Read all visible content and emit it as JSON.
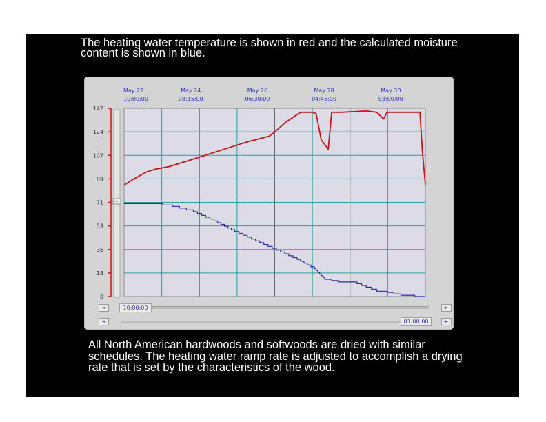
{
  "captions": {
    "top": "The heating water temperature is shown in red and the calculated moisture content is shown in blue.",
    "bottom": "All North American hardwoods and softwoods are dried with similar schedules. The heating water ramp rate is adjusted to accomplish a drying rate that is set by the characteristics of the wood."
  },
  "scrollbar": {
    "start_time": "10:00:00",
    "end_time": "03:00:00",
    "left_arrow": "◄",
    "right_arrow": "►"
  },
  "colors": {
    "temperature": "#c81414",
    "moisture": "#2828a8",
    "plot_background": "#dcdbe6",
    "grid": "#2aa0a0"
  },
  "chart_data": {
    "type": "line",
    "grid": true,
    "ylim": [
      0,
      142
    ],
    "yticks": [
      "142",
      "124",
      "107",
      "89",
      "71",
      "53",
      "36",
      "18",
      "0"
    ],
    "xlim": [
      0,
      8.708
    ],
    "x_unit": "days since May 22 10:00:00",
    "time_labels": [
      {
        "date": "May 22",
        "time": "10:00:00",
        "x": 0
      },
      {
        "date": "May 24",
        "time": "08:15:00",
        "x": 1.927
      },
      {
        "date": "May 26",
        "time": "06:30:00",
        "x": 3.854
      },
      {
        "date": "May 28",
        "time": "04:45:00",
        "x": 5.781
      },
      {
        "date": "May 30",
        "time": "03:00:00",
        "x": 7.708
      }
    ],
    "series": [
      {
        "key": "temperature",
        "x": [
          0,
          0.3,
          0.65,
          0.9,
          1.3,
          1.8,
          2.4,
          3.0,
          3.6,
          4.2,
          4.3,
          4.7,
          5.1,
          5.35,
          5.45,
          5.55,
          5.7,
          5.85,
          5.9,
          6.0,
          6.3,
          7.0,
          7.3,
          7.5,
          7.6,
          7.75,
          8.0,
          8.15,
          8.25,
          8.55,
          8.62,
          8.708
        ],
        "values": [
          84,
          89,
          94,
          96,
          98,
          102,
          107,
          112,
          117,
          121,
          123,
          132,
          139,
          139,
          139,
          138,
          118,
          113,
          111,
          139,
          139,
          140,
          139,
          134,
          139,
          139,
          139,
          139,
          139,
          139,
          110,
          84
        ]
      },
      {
        "key": "moisture",
        "x": [
          0,
          0.8,
          1.4,
          2.0,
          2.6,
          3.2,
          3.8,
          4.4,
          5.0,
          5.5,
          5.8,
          6.2,
          6.6,
          7.0,
          7.3,
          7.6,
          8.0,
          8.4,
          8.708
        ],
        "values": [
          70,
          70,
          68,
          64,
          57,
          49,
          42,
          35,
          28,
          21,
          13,
          11,
          11,
          7,
          4,
          3,
          1,
          0,
          0
        ]
      }
    ]
  }
}
